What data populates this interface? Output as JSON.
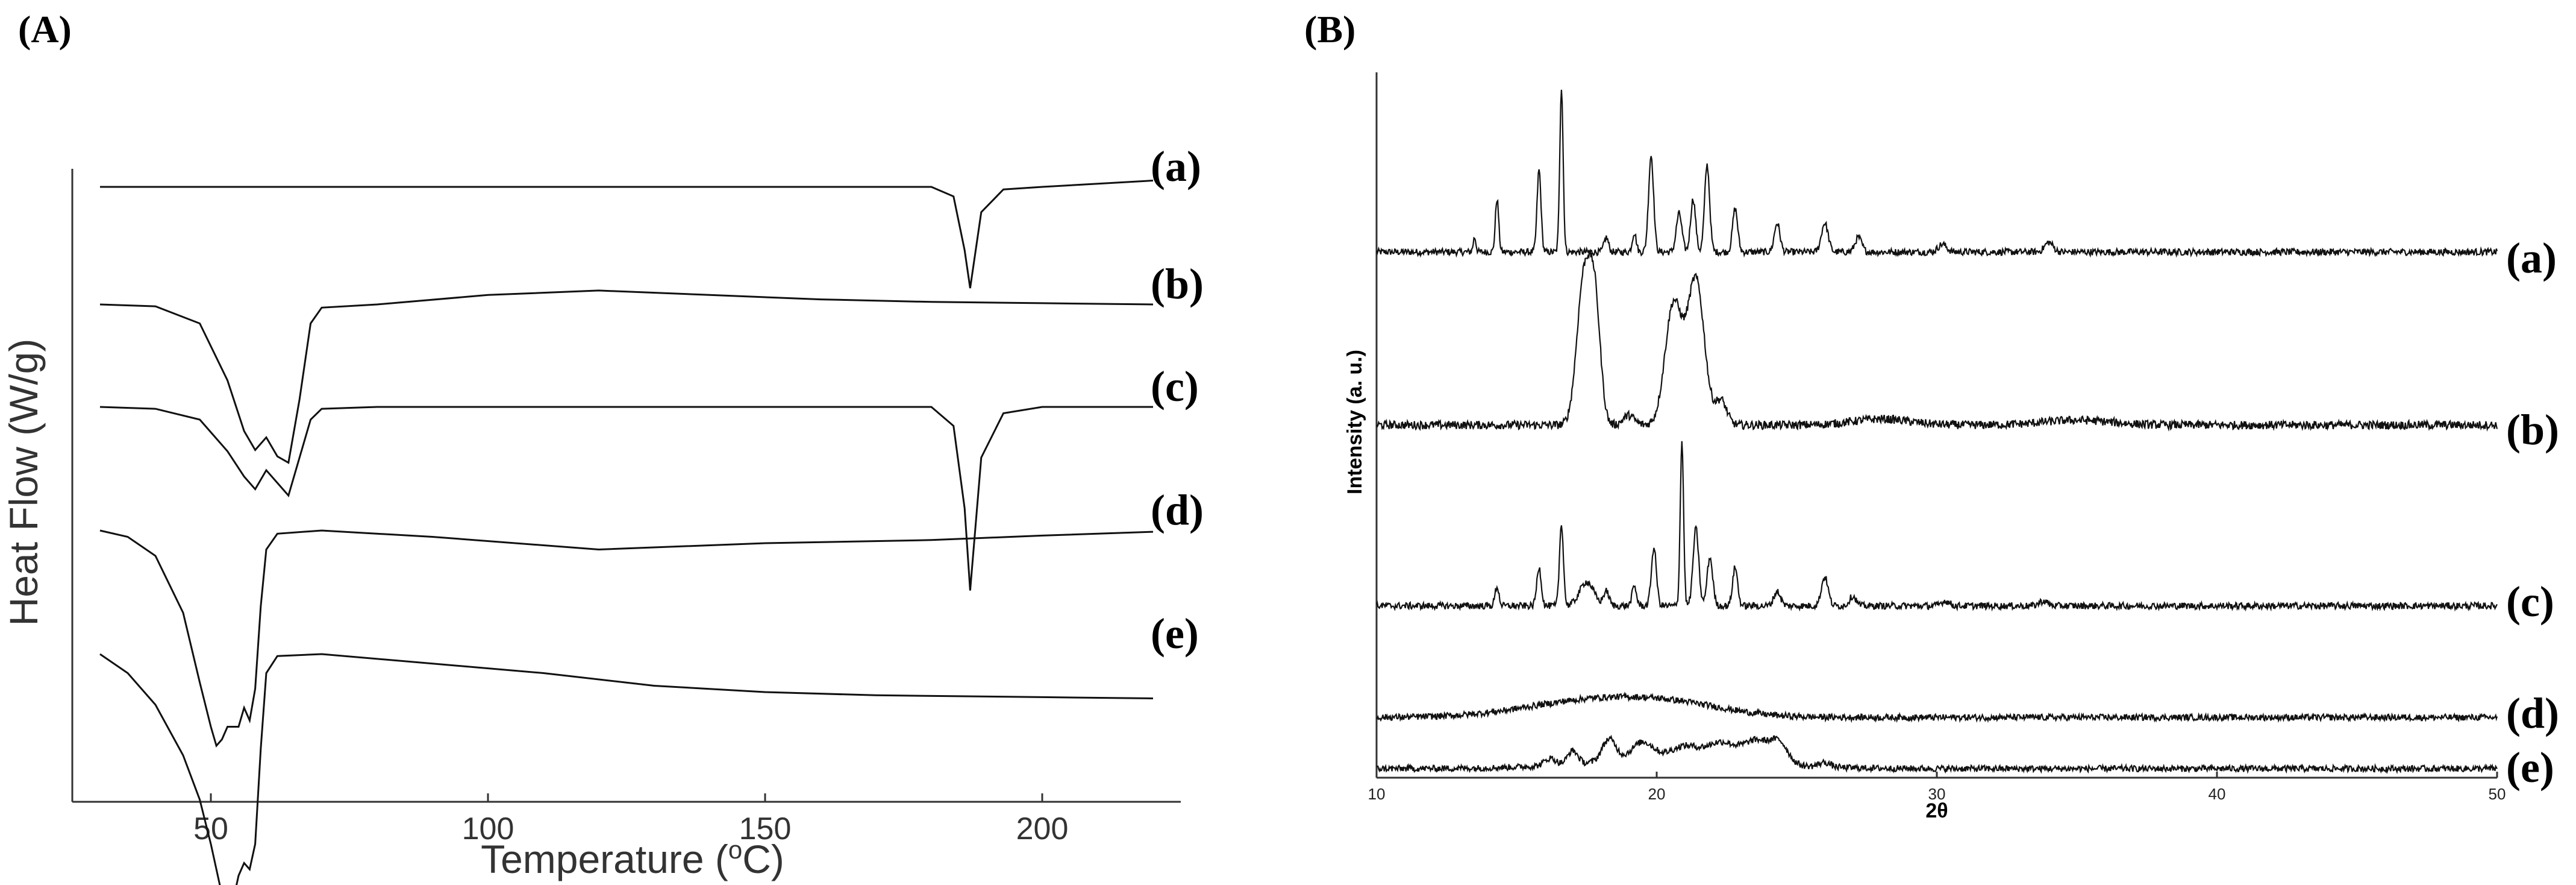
{
  "chart_data": [
    {
      "panel_label": "(A)",
      "type": "line",
      "xlabel": "Temperature (",
      "xlabel_sup": "o",
      "xlabel_suffix": "C)",
      "ylabel": "Heat Flow (W/g)",
      "xlim": [
        25,
        225
      ],
      "xticks": [
        50,
        100,
        150,
        200
      ],
      "grid": false,
      "series": [
        {
          "name": "(a)",
          "x": [
            30,
            100,
            180,
            184,
            186,
            187,
            189,
            193,
            200,
            220
          ],
          "y": [
            0.0,
            0.0,
            0.0,
            -0.015,
            -0.1,
            -0.16,
            -0.04,
            -0.004,
            0.0,
            0.01
          ]
        },
        {
          "name": "(b)",
          "x": [
            30,
            40,
            48,
            53,
            56,
            58,
            60,
            62,
            64,
            66,
            68,
            70,
            80,
            100,
            120,
            140,
            160,
            180,
            200,
            220
          ],
          "y": [
            0.0,
            -0.003,
            -0.03,
            -0.12,
            -0.2,
            -0.23,
            -0.21,
            -0.24,
            -0.25,
            -0.15,
            -0.03,
            -0.005,
            0.0,
            0.015,
            0.022,
            0.015,
            0.008,
            0.004,
            0.002,
            0.0
          ]
        },
        {
          "name": "(c)",
          "x": [
            30,
            40,
            48,
            53,
            56,
            58,
            60,
            62,
            64,
            66,
            68,
            70,
            80,
            120,
            180,
            184,
            186,
            187,
            189,
            193,
            200,
            220
          ],
          "y": [
            0.0,
            -0.003,
            -0.02,
            -0.07,
            -0.11,
            -0.13,
            -0.1,
            -0.12,
            -0.14,
            -0.08,
            -0.02,
            -0.003,
            0.0,
            0.0,
            0.0,
            -0.03,
            -0.16,
            -0.29,
            -0.08,
            -0.01,
            0.0,
            0.0
          ]
        },
        {
          "name": "(d)",
          "x": [
            30,
            35,
            40,
            45,
            48,
            50,
            51,
            52,
            53,
            55,
            56,
            57,
            58,
            59,
            60,
            62,
            70,
            90,
            120,
            150,
            180,
            200,
            220
          ],
          "y": [
            0.0,
            -0.01,
            -0.04,
            -0.13,
            -0.24,
            -0.31,
            -0.34,
            -0.33,
            -0.31,
            -0.31,
            -0.28,
            -0.3,
            -0.25,
            -0.12,
            -0.03,
            -0.005,
            0.0,
            -0.01,
            -0.03,
            -0.02,
            -0.015,
            -0.008,
            -0.002
          ]
        },
        {
          "name": "(e)",
          "x": [
            30,
            35,
            40,
            45,
            48,
            50,
            52,
            53,
            54,
            55,
            56,
            57,
            58,
            59,
            60,
            62,
            70,
            90,
            110,
            130,
            150,
            170,
            200,
            220
          ],
          "y": [
            0.0,
            -0.03,
            -0.08,
            -0.16,
            -0.23,
            -0.3,
            -0.38,
            -0.41,
            -0.39,
            -0.35,
            -0.33,
            -0.34,
            -0.3,
            -0.15,
            -0.03,
            -0.003,
            0.0,
            -0.015,
            -0.03,
            -0.05,
            -0.06,
            -0.065,
            -0.068,
            -0.07
          ]
        }
      ]
    },
    {
      "panel_label": "(B)",
      "type": "line",
      "xlabel": "2θ",
      "ylabel": "Intensity (a. u.)",
      "xlim": [
        10,
        50
      ],
      "xticks": [
        10,
        20,
        30,
        40,
        50
      ],
      "grid": false,
      "series": [
        {
          "name": "(a)",
          "peaks": [
            [
              13.5,
              0.15,
              0.05
            ],
            [
              14.3,
              0.55,
              0.06
            ],
            [
              15.8,
              0.85,
              0.07
            ],
            [
              16.6,
              1.7,
              0.06
            ],
            [
              18.2,
              0.15,
              0.08
            ],
            [
              19.2,
              0.2,
              0.07
            ],
            [
              19.8,
              1.0,
              0.09
            ],
            [
              20.8,
              0.4,
              0.1
            ],
            [
              21.3,
              0.55,
              0.09
            ],
            [
              21.8,
              0.9,
              0.09
            ],
            [
              22.8,
              0.45,
              0.09
            ],
            [
              24.3,
              0.3,
              0.1
            ],
            [
              26.0,
              0.3,
              0.12
            ],
            [
              27.2,
              0.15,
              0.12
            ],
            [
              30.2,
              0.08,
              0.15
            ],
            [
              34.0,
              0.1,
              0.15
            ]
          ]
        },
        {
          "name": "(b)",
          "peaks": [
            [
              17.4,
              1.2,
              0.25
            ],
            [
              17.8,
              0.9,
              0.2
            ],
            [
              19.0,
              0.08,
              0.2
            ],
            [
              20.6,
              1.0,
              0.3
            ],
            [
              21.4,
              1.2,
              0.3
            ],
            [
              22.3,
              0.2,
              0.2
            ],
            [
              28.0,
              0.05,
              1.0
            ],
            [
              35.0,
              0.04,
              1.2
            ]
          ]
        },
        {
          "name": "(c)",
          "peaks": [
            [
              14.3,
              0.2,
              0.07
            ],
            [
              15.8,
              0.4,
              0.08
            ],
            [
              16.6,
              0.85,
              0.07
            ],
            [
              17.5,
              0.25,
              0.25
            ],
            [
              18.2,
              0.15,
              0.1
            ],
            [
              19.2,
              0.2,
              0.08
            ],
            [
              19.9,
              0.6,
              0.09
            ],
            [
              20.9,
              1.7,
              0.06
            ],
            [
              21.4,
              0.8,
              0.1
            ],
            [
              21.9,
              0.5,
              0.1
            ],
            [
              22.8,
              0.4,
              0.09
            ],
            [
              24.3,
              0.15,
              0.12
            ],
            [
              26.0,
              0.3,
              0.12
            ],
            [
              27.0,
              0.1,
              0.12
            ],
            [
              30.3,
              0.05,
              0.15
            ],
            [
              33.8,
              0.05,
              0.15
            ]
          ]
        },
        {
          "name": "(d)",
          "peaks": [
            [
              18.0,
              0.2,
              2.5
            ],
            [
              21.0,
              0.08,
              1.8
            ]
          ]
        },
        {
          "name": "(e)",
          "peaks": [
            [
              16.2,
              0.08,
              0.2
            ],
            [
              17.0,
              0.15,
              0.18
            ],
            [
              18.3,
              0.25,
              0.25
            ],
            [
              19.5,
              0.2,
              0.4
            ],
            [
              21.0,
              0.15,
              0.5
            ],
            [
              22.3,
              0.2,
              0.5
            ],
            [
              23.6,
              0.25,
              0.5
            ],
            [
              24.4,
              0.2,
              0.3
            ],
            [
              20.5,
              0.1,
              3.0
            ],
            [
              26.0,
              0.05,
              0.2
            ]
          ]
        }
      ]
    }
  ]
}
